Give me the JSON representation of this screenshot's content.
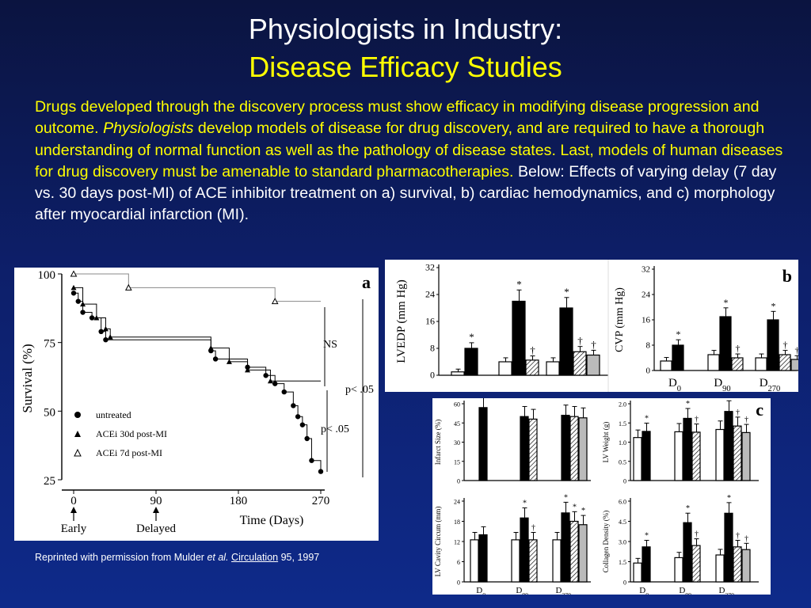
{
  "slide": {
    "title_line1": "Physiologists in Industry:",
    "title_line2": "Disease Efficacy Studies",
    "para_yellow_1": "Drugs developed through the discovery process must show efficacy in modifying disease progression and outcome.",
    "para_italic": "Physiologists",
    "para_yellow_2": "develop models of disease for drug discovery, and are required to have a thorough understanding of normal function as well as the pathology of disease states.  Last, models of human diseases for drug discovery must be amenable to standard pharmacotherapies.",
    "para_white": "Below: Effects of varying delay (7 day vs. 30 days post-MI) of ACE inhibitor treatment on a) survival, b) cardiac hemodynamics, and c) morphology after myocardial infarction (MI).",
    "caption_pre": "Reprinted with permission from Mulder",
    "caption_etal": "et al.",
    "caption_journal": "Circulation",
    "caption_post": "95, 1997"
  },
  "chart_data": [
    {
      "type": "line",
      "panel_label": "a",
      "xlabel": "Time (Days)",
      "ylabel": "Survival (%)",
      "x_ticks": [
        "0",
        "90",
        "180",
        "270"
      ],
      "y_ticks": [
        "25",
        "50",
        "75",
        "100"
      ],
      "xlim": [
        0,
        270
      ],
      "ylim": [
        25,
        100
      ],
      "markers": [
        "Early",
        "Delayed"
      ],
      "annotations": [
        "NS",
        "p< .05",
        "p< .05"
      ],
      "series": [
        {
          "name": "untreated",
          "x": [
            0,
            5,
            10,
            20,
            30,
            35,
            150,
            155,
            190,
            210,
            220,
            230,
            240,
            245,
            250,
            255,
            260,
            270
          ],
          "y": [
            93,
            90,
            86,
            84,
            79,
            76,
            72,
            69,
            66,
            63,
            60,
            57,
            52,
            48,
            45,
            40,
            32,
            28
          ]
        },
        {
          "name": "ACEi 30d post-MI",
          "x": [
            0,
            10,
            25,
            35,
            40,
            150,
            170,
            190,
            215
          ],
          "y": [
            95,
            89,
            84,
            80,
            77,
            73,
            68,
            65,
            61
          ]
        },
        {
          "name": "ACEi 7d post-MI",
          "x": [
            0,
            60,
            220
          ],
          "y": [
            100,
            95,
            90
          ]
        }
      ]
    },
    {
      "type": "bar",
      "panel_label": "b",
      "subcharts": [
        {
          "ylabel": "LVEDP (mm Hg)",
          "y_ticks": [
            "0",
            "8",
            "16",
            "24",
            "32"
          ],
          "ylim": [
            0,
            32
          ],
          "groups": [
            [
              1,
              8,
              null,
              null
            ],
            [
              4,
              22,
              4.5,
              null
            ],
            [
              4,
              20,
              7,
              6
            ]
          ],
          "marks": [
            [
              "",
              "*",
              "",
              ""
            ],
            [
              "",
              "*",
              "†",
              ""
            ],
            [
              "",
              "*",
              "†",
              "†"
            ]
          ]
        },
        {
          "ylabel": "CVP (mm Hg)",
          "y_ticks": [
            "0",
            "8",
            "16",
            "24",
            "32"
          ],
          "ylim": [
            0,
            32
          ],
          "x_labels": [
            "D0",
            "D90",
            "D270"
          ],
          "groups": [
            [
              3,
              8,
              null,
              null
            ],
            [
              5,
              17,
              4,
              null
            ],
            [
              4,
              16,
              5,
              3.5
            ]
          ],
          "marks": [
            [
              "",
              "*",
              "",
              ""
            ],
            [
              "",
              "*",
              "†",
              ""
            ],
            [
              "",
              "*",
              "†",
              "†"
            ]
          ]
        }
      ]
    },
    {
      "type": "bar",
      "panel_label": "c",
      "x_labels": [
        "D0",
        "D90",
        "D270"
      ],
      "subcharts": [
        {
          "ylabel": "Infarct Size (%)",
          "y_ticks": [
            "0",
            "15",
            "30",
            "45",
            "60"
          ],
          "ylim": [
            0,
            60
          ],
          "groups": [
            [
              null,
              57,
              null,
              null
            ],
            [
              null,
              50,
              48,
              null
            ],
            [
              null,
              51,
              50,
              49
            ]
          ],
          "marks": [
            [
              "",
              "",
              "",
              ""
            ],
            [
              "",
              "",
              "",
              ""
            ],
            [
              "",
              "",
              "",
              ""
            ]
          ]
        },
        {
          "ylabel": "LV Weight (g)",
          "y_ticks": [
            "0",
            "0.5",
            "1.0",
            "1.5",
            "2.0"
          ],
          "ylim": [
            0,
            2
          ],
          "groups": [
            [
              1.12,
              1.28,
              null,
              null
            ],
            [
              1.27,
              1.62,
              1.26,
              null
            ],
            [
              1.33,
              1.8,
              1.42,
              1.25
            ]
          ],
          "marks": [
            [
              "",
              "*",
              "",
              ""
            ],
            [
              "",
              "*",
              "†",
              ""
            ],
            [
              "",
              "*",
              "†",
              "†"
            ]
          ]
        },
        {
          "ylabel": "LV Cavity Circum (mm)",
          "y_ticks": [
            "0",
            "6",
            "12",
            "18",
            "24"
          ],
          "ylim": [
            0,
            24
          ],
          "groups": [
            [
              12.5,
              14,
              null,
              null
            ],
            [
              12.5,
              19,
              12.5,
              null
            ],
            [
              12.5,
              20.5,
              18,
              17
            ]
          ],
          "marks": [
            [
              "",
              "",
              "",
              ""
            ],
            [
              "",
              "*",
              "†",
              ""
            ],
            [
              "",
              "*",
              "*",
              "*"
            ]
          ]
        },
        {
          "ylabel": "Collagen Density (%)",
          "y_ticks": [
            "0",
            "1.5",
            "3.0",
            "4.5",
            "6.0"
          ],
          "ylim": [
            0,
            6
          ],
          "groups": [
            [
              1.4,
              2.6,
              null,
              null
            ],
            [
              1.8,
              4.4,
              2.7,
              null
            ],
            [
              2,
              5.1,
              2.6,
              2.4
            ]
          ],
          "marks": [
            [
              "",
              "*",
              "",
              ""
            ],
            [
              "",
              "*",
              "†",
              ""
            ],
            [
              "",
              "*",
              "†",
              "†"
            ]
          ]
        }
      ]
    }
  ]
}
